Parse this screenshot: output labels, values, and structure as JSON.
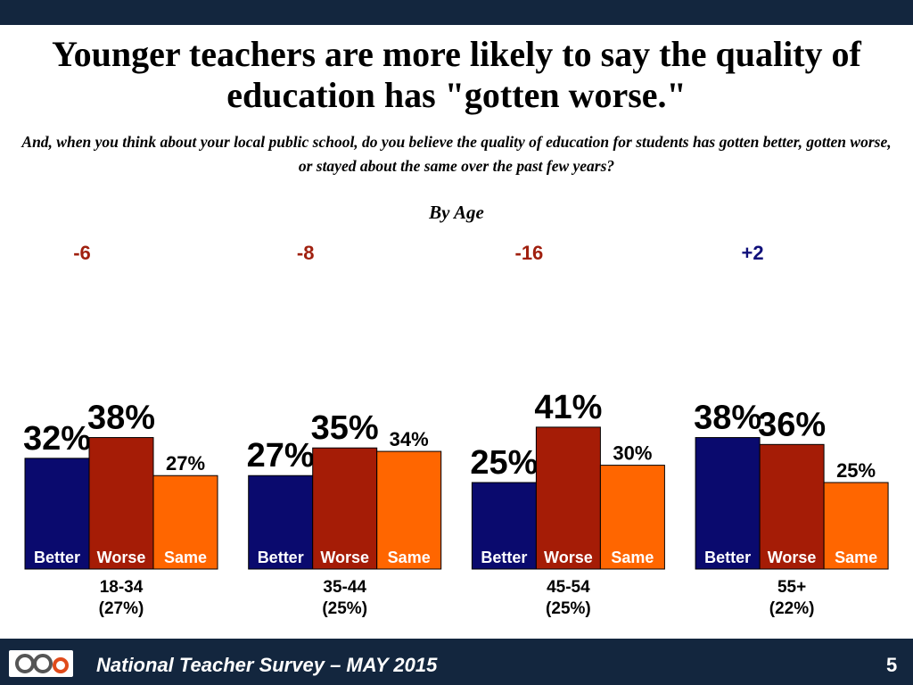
{
  "chart_data": {
    "type": "bar",
    "title": "Younger teachers are more likely to say the quality of education has \"gotten worse.\"",
    "subtitle": "And, when you think about your local public school, do you believe the quality of education for students has gotten better, gotten worse, or stayed about the same over the past few years?",
    "group_label": "By Age",
    "categories": [
      "18-34",
      "35-44",
      "45-54",
      "55+"
    ],
    "category_shares": [
      "(27%)",
      "(25%)",
      "(25%)",
      "(22%)"
    ],
    "series": [
      {
        "name": "Better",
        "color": "#0a0a6e",
        "values": [
          32,
          27,
          25,
          38
        ],
        "value_labels": [
          "32%",
          "27%",
          "25%",
          "38%"
        ]
      },
      {
        "name": "Worse",
        "color": "#a51c06",
        "values": [
          38,
          35,
          41,
          36
        ],
        "value_labels": [
          "38%",
          "35%",
          "41%",
          "36%"
        ]
      },
      {
        "name": "Same",
        "color": "#ff6600",
        "values": [
          27,
          34,
          30,
          25
        ],
        "value_labels": [
          "27%",
          "34%",
          "30%",
          "25%"
        ]
      }
    ],
    "net": {
      "values": [
        -6,
        -8,
        -16,
        2
      ],
      "value_labels": [
        "-6",
        "-8",
        "-16",
        "+2"
      ],
      "negative_color": "#a0200f",
      "positive_color": "#10107a"
    }
  },
  "footer": {
    "text": "National Teacher Survey – MAY 2015",
    "page": "5"
  }
}
